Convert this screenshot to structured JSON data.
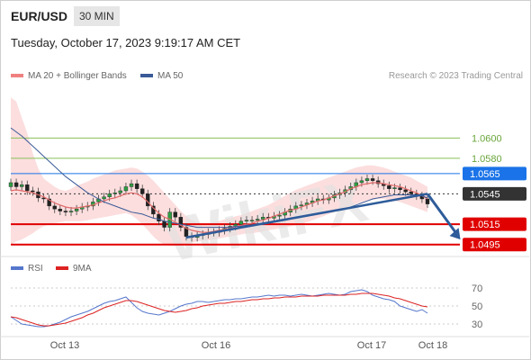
{
  "header": {
    "symbol": "EUR/USD",
    "timeframe": "30 MIN",
    "datetime": "Tuesday, October 17, 2023 9:19:17 AM CET"
  },
  "legend": {
    "ma20": {
      "label": "MA 20 + Bollinger Bands",
      "color": "#f08080"
    },
    "ma50": {
      "label": "MA 50",
      "color": "#3a5a98"
    },
    "credit": "Research © 2023 Trading Central"
  },
  "rsi_legend": {
    "rsi": {
      "label": "RSI",
      "color": "#5577cc"
    },
    "ma9": {
      "label": "9MA",
      "color": "#dd2222"
    }
  },
  "watermark": "WikiFX",
  "chart_data": [
    {
      "type": "candlestick",
      "ylim": [
        1.0485,
        1.065
      ],
      "x_ticks": [
        "Oct 13",
        "Oct 16",
        "Oct 17",
        "Oct 18"
      ],
      "levels": [
        {
          "label": "1.0600",
          "value": 1.06,
          "color": "#88c057",
          "style": "text"
        },
        {
          "label": "1.0580",
          "value": 1.058,
          "color": "#88c057",
          "style": "text"
        },
        {
          "label": "1.0565",
          "value": 1.0565,
          "color": "#1a73e8",
          "style": "box"
        },
        {
          "label": "1.0545",
          "value": 1.0545,
          "color": "#333333",
          "style": "box"
        },
        {
          "label": "1.0515",
          "value": 1.0515,
          "color": "#e00000",
          "style": "box"
        },
        {
          "label": "1.0495",
          "value": 1.0495,
          "color": "#e00000",
          "style": "box"
        }
      ],
      "close": [
        1.0556,
        1.0552,
        1.0554,
        1.0548,
        1.0547,
        1.0541,
        1.054,
        1.0533,
        1.053,
        1.0528,
        1.0527,
        1.0528,
        1.053,
        1.0532,
        1.0533,
        1.0537,
        1.054,
        1.0542,
        1.0545,
        1.0546,
        1.0548,
        1.0552,
        1.0555,
        1.055,
        1.0545,
        1.0533,
        1.0525,
        1.0518,
        1.0512,
        1.0527,
        1.0522,
        1.0512,
        1.0503,
        1.0502,
        1.0504,
        1.0505,
        1.0507,
        1.0507,
        1.0509,
        1.0511,
        1.0513,
        1.0515,
        1.0518,
        1.0519,
        1.0519,
        1.052,
        1.0522,
        1.0521,
        1.0523,
        1.0524,
        1.0527,
        1.053,
        1.0533,
        1.0534,
        1.0536,
        1.0538,
        1.054,
        1.0539,
        1.0541,
        1.0544,
        1.0546,
        1.0549,
        1.0552,
        1.0556,
        1.0558,
        1.056,
        1.0558,
        1.0555,
        1.0553,
        1.055,
        1.0551,
        1.0549,
        1.0547,
        1.0545,
        1.0543,
        1.054,
        1.0535
      ],
      "ma20": [
        1.0548,
        1.0549,
        1.0548,
        1.0547,
        1.0546,
        1.0544,
        1.0542,
        1.0539,
        1.0536,
        1.0534,
        1.0532,
        1.0531,
        1.0531,
        1.0532,
        1.0533,
        1.0534,
        1.0536,
        1.0538,
        1.054,
        1.0541,
        1.0543,
        1.0545,
        1.0546,
        1.0545,
        1.0542,
        1.0537,
        1.0531,
        1.0526,
        1.0522,
        1.052,
        1.0517,
        1.0514,
        1.0511,
        1.0509,
        1.0508,
        1.0507,
        1.0507,
        1.0508,
        1.0509,
        1.051,
        1.0511,
        1.0513,
        1.0514,
        1.0515,
        1.0516,
        1.0518,
        1.0519,
        1.0521,
        1.0523,
        1.0525,
        1.0527,
        1.0529,
        1.053,
        1.0532,
        1.0534,
        1.0536,
        1.0538,
        1.0539,
        1.0541,
        1.0543,
        1.0545,
        1.0547,
        1.055,
        1.0552,
        1.0554,
        1.0555,
        1.0556,
        1.0556,
        1.0555,
        1.0554,
        1.0553,
        1.0552,
        1.055,
        1.0548,
        1.0546,
        1.0543,
        1.054
      ],
      "bb_upper": [
        1.064,
        1.0636,
        1.062,
        1.0605,
        1.0585,
        1.057,
        1.056,
        1.0556,
        1.0552,
        1.0549,
        1.0548,
        1.055,
        1.0553,
        1.0555,
        1.0557,
        1.056,
        1.0562,
        1.0564,
        1.0566,
        1.0568,
        1.0569,
        1.057,
        1.0571,
        1.057,
        1.0567,
        1.0563,
        1.0558,
        1.0552,
        1.0546,
        1.054,
        1.0534,
        1.0528,
        1.0523,
        1.0519,
        1.0517,
        1.0516,
        1.0516,
        1.0517,
        1.0518,
        1.052,
        1.0521,
        1.0523,
        1.0524,
        1.0526,
        1.0528,
        1.053,
        1.0532,
        1.0534,
        1.0537,
        1.054,
        1.0543,
        1.0546,
        1.0549,
        1.0551,
        1.0553,
        1.0555,
        1.0557,
        1.0559,
        1.0561,
        1.0563,
        1.0565,
        1.0567,
        1.0569,
        1.0571,
        1.0572,
        1.0573,
        1.0573,
        1.0572,
        1.0571,
        1.0569,
        1.0567,
        1.0565,
        1.0563,
        1.0561,
        1.0558,
        1.0555,
        1.0552
      ],
      "bb_lower": [
        1.0495,
        1.0498,
        1.05,
        1.0503,
        1.0506,
        1.051,
        1.0513,
        1.0515,
        1.0516,
        1.0517,
        1.0518,
        1.0518,
        1.0518,
        1.0518,
        1.0519,
        1.052,
        1.0521,
        1.0522,
        1.0523,
        1.0524,
        1.0525,
        1.0526,
        1.0524,
        1.052,
        1.0515,
        1.0509,
        1.0503,
        1.0498,
        1.0495,
        1.0494,
        1.0494,
        1.0495,
        1.0496,
        1.0497,
        1.0498,
        1.0499,
        1.0499,
        1.05,
        1.0501,
        1.0502,
        1.0503,
        1.0504,
        1.0505,
        1.0506,
        1.0506,
        1.0507,
        1.0508,
        1.0509,
        1.051,
        1.0511,
        1.0512,
        1.0513,
        1.0514,
        1.0515,
        1.0517,
        1.0519,
        1.0521,
        1.0523,
        1.0525,
        1.0527,
        1.0529,
        1.0531,
        1.0533,
        1.0535,
        1.0537,
        1.0538,
        1.0539,
        1.054,
        1.054,
        1.0539,
        1.0538,
        1.0537,
        1.0535,
        1.0533,
        1.0531,
        1.0529,
        1.0527
      ],
      "ma50": [
        1.061,
        1.0606,
        1.0602,
        1.0597,
        1.0592,
        1.0587,
        1.0582,
        1.0577,
        1.0572,
        1.0567,
        1.0562,
        1.0558,
        1.0554,
        1.055,
        1.0546,
        1.0543,
        1.054,
        1.0537,
        1.0535,
        1.0533,
        1.0531,
        1.0529,
        1.0527,
        1.0526,
        1.0525,
        1.0523,
        1.0521,
        1.052,
        1.0518,
        1.0517,
        1.0516,
        1.0515,
        1.0514,
        1.0513,
        1.0512,
        1.0512,
        1.0512,
        1.0512,
        1.0512,
        1.0512,
        1.0512,
        1.0513,
        1.0513,
        1.0514,
        1.0514,
        1.0515,
        1.0515,
        1.0516,
        1.0517,
        1.0518,
        1.0519,
        1.052,
        1.0521,
        1.0522,
        1.0523,
        1.0524,
        1.0525,
        1.0526,
        1.0527,
        1.0528,
        1.0529,
        1.053,
        1.0532,
        1.0534,
        1.0536,
        1.0538,
        1.054,
        1.0541,
        1.0542,
        1.0543,
        1.0544,
        1.0544,
        1.0544,
        1.0544,
        1.0544,
        1.0543,
        1.0541
      ],
      "trendline": {
        "from": [
          32,
          1.0502
        ],
        "to": [
          76,
          1.0545
        ]
      },
      "forecast_arrow": {
        "from": [
          76,
          1.0545
        ],
        "to": [
          82,
          1.05
        ]
      }
    },
    {
      "type": "line",
      "title": "RSI",
      "ylim": [
        20,
        80
      ],
      "y_ticks": [
        70,
        50,
        30
      ],
      "rsi": [
        38,
        34,
        30,
        29,
        28,
        27,
        27,
        28,
        30,
        32,
        35,
        38,
        40,
        42,
        44,
        47,
        50,
        53,
        55,
        56,
        58,
        60,
        54,
        48,
        44,
        42,
        41,
        40,
        42,
        44,
        47,
        50,
        52,
        53,
        55,
        55,
        54,
        55,
        56,
        57,
        57,
        58,
        58,
        59,
        60,
        60,
        61,
        62,
        61,
        62,
        62,
        61,
        62,
        63,
        62,
        61,
        62,
        63,
        64,
        63,
        62,
        63,
        66,
        67,
        68,
        66,
        62,
        60,
        58,
        57,
        55,
        50,
        48,
        46,
        44,
        46,
        42
      ],
      "ma9": [
        38,
        37,
        35,
        33,
        31,
        29,
        28,
        28,
        29,
        30,
        31,
        33,
        35,
        37,
        40,
        42,
        45,
        48,
        50,
        52,
        54,
        56,
        56,
        55,
        53,
        51,
        49,
        47,
        45,
        44,
        43,
        44,
        45,
        47,
        48,
        50,
        51,
        52,
        53,
        53,
        54,
        55,
        55,
        56,
        57,
        57,
        58,
        58,
        59,
        59,
        60,
        60,
        60,
        61,
        61,
        61,
        61,
        62,
        62,
        62,
        62,
        62,
        63,
        63,
        64,
        64,
        64,
        63,
        62,
        61,
        59,
        58,
        56,
        54,
        52,
        50,
        49
      ]
    }
  ]
}
